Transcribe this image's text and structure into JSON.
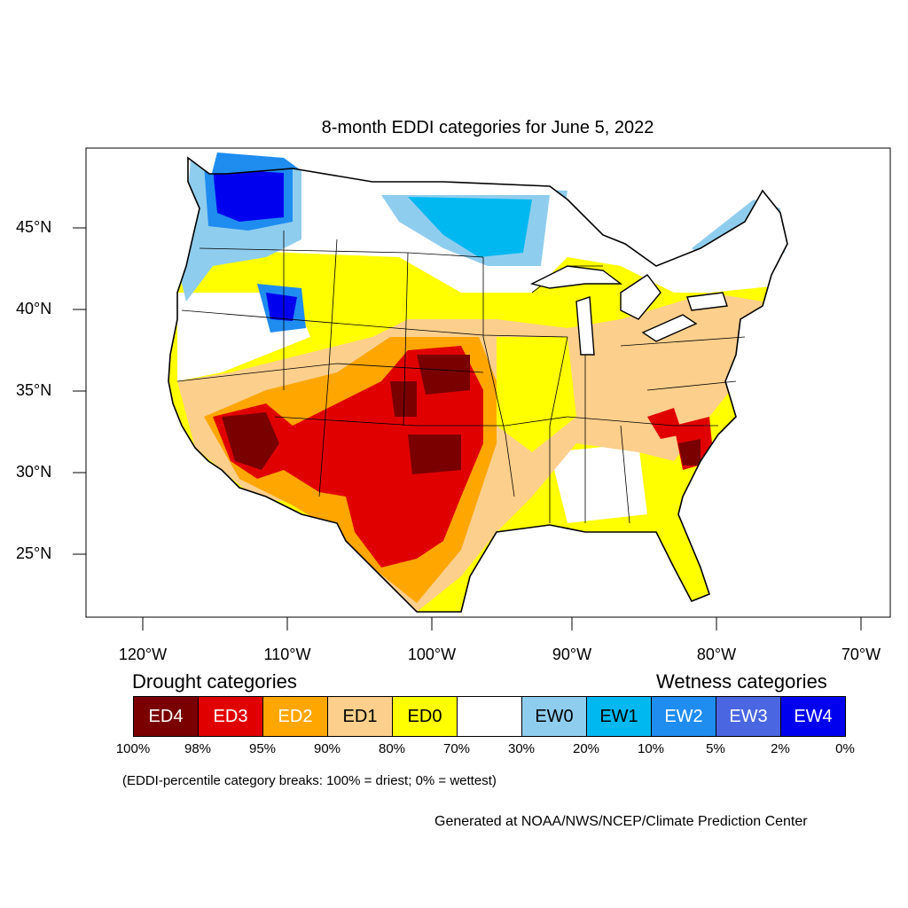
{
  "title": "8-month EDDI categories for June 5, 2022",
  "lat_labels": [
    "45°N",
    "40°N",
    "35°N",
    "30°N",
    "25°N"
  ],
  "lon_labels": [
    "120°W",
    "110°W",
    "100°W",
    "90°W",
    "80°W",
    "70°W"
  ],
  "legend": {
    "drought_heading": "Drought categories",
    "wetness_heading": "Wetness categories",
    "categories": [
      {
        "label": "ED4",
        "color": "#7a0000",
        "text_color": "#ffffff"
      },
      {
        "label": "ED3",
        "color": "#e10000",
        "text_color": "#ffffff"
      },
      {
        "label": "ED2",
        "color": "#ffa600",
        "text_color": "#ffffff"
      },
      {
        "label": "ED1",
        "color": "#fccf8c",
        "text_color": "#000000"
      },
      {
        "label": "ED0",
        "color": "#ffff00",
        "text_color": "#000000"
      },
      {
        "label": "",
        "color": "#ffffff",
        "text_color": "#000000"
      },
      {
        "label": "EW0",
        "color": "#8fcdee",
        "text_color": "#000000"
      },
      {
        "label": "EW1",
        "color": "#00b8f0",
        "text_color": "#000000"
      },
      {
        "label": "EW2",
        "color": "#1f8cf0",
        "text_color": "#ffffff"
      },
      {
        "label": "EW3",
        "color": "#4a66e0",
        "text_color": "#ffffff"
      },
      {
        "label": "EW4",
        "color": "#0000ee",
        "text_color": "#ffffff"
      }
    ],
    "percentiles": [
      "100%",
      "98%",
      "95%",
      "90%",
      "80%",
      "70%",
      "30%",
      "20%",
      "10%",
      "5%",
      "2%",
      "0%"
    ]
  },
  "note": "(EDDI-percentile category breaks: 100% = driest; 0% = wettest)",
  "credit": "Generated at NOAA/NWS/NCEP/Climate Prediction Center"
}
